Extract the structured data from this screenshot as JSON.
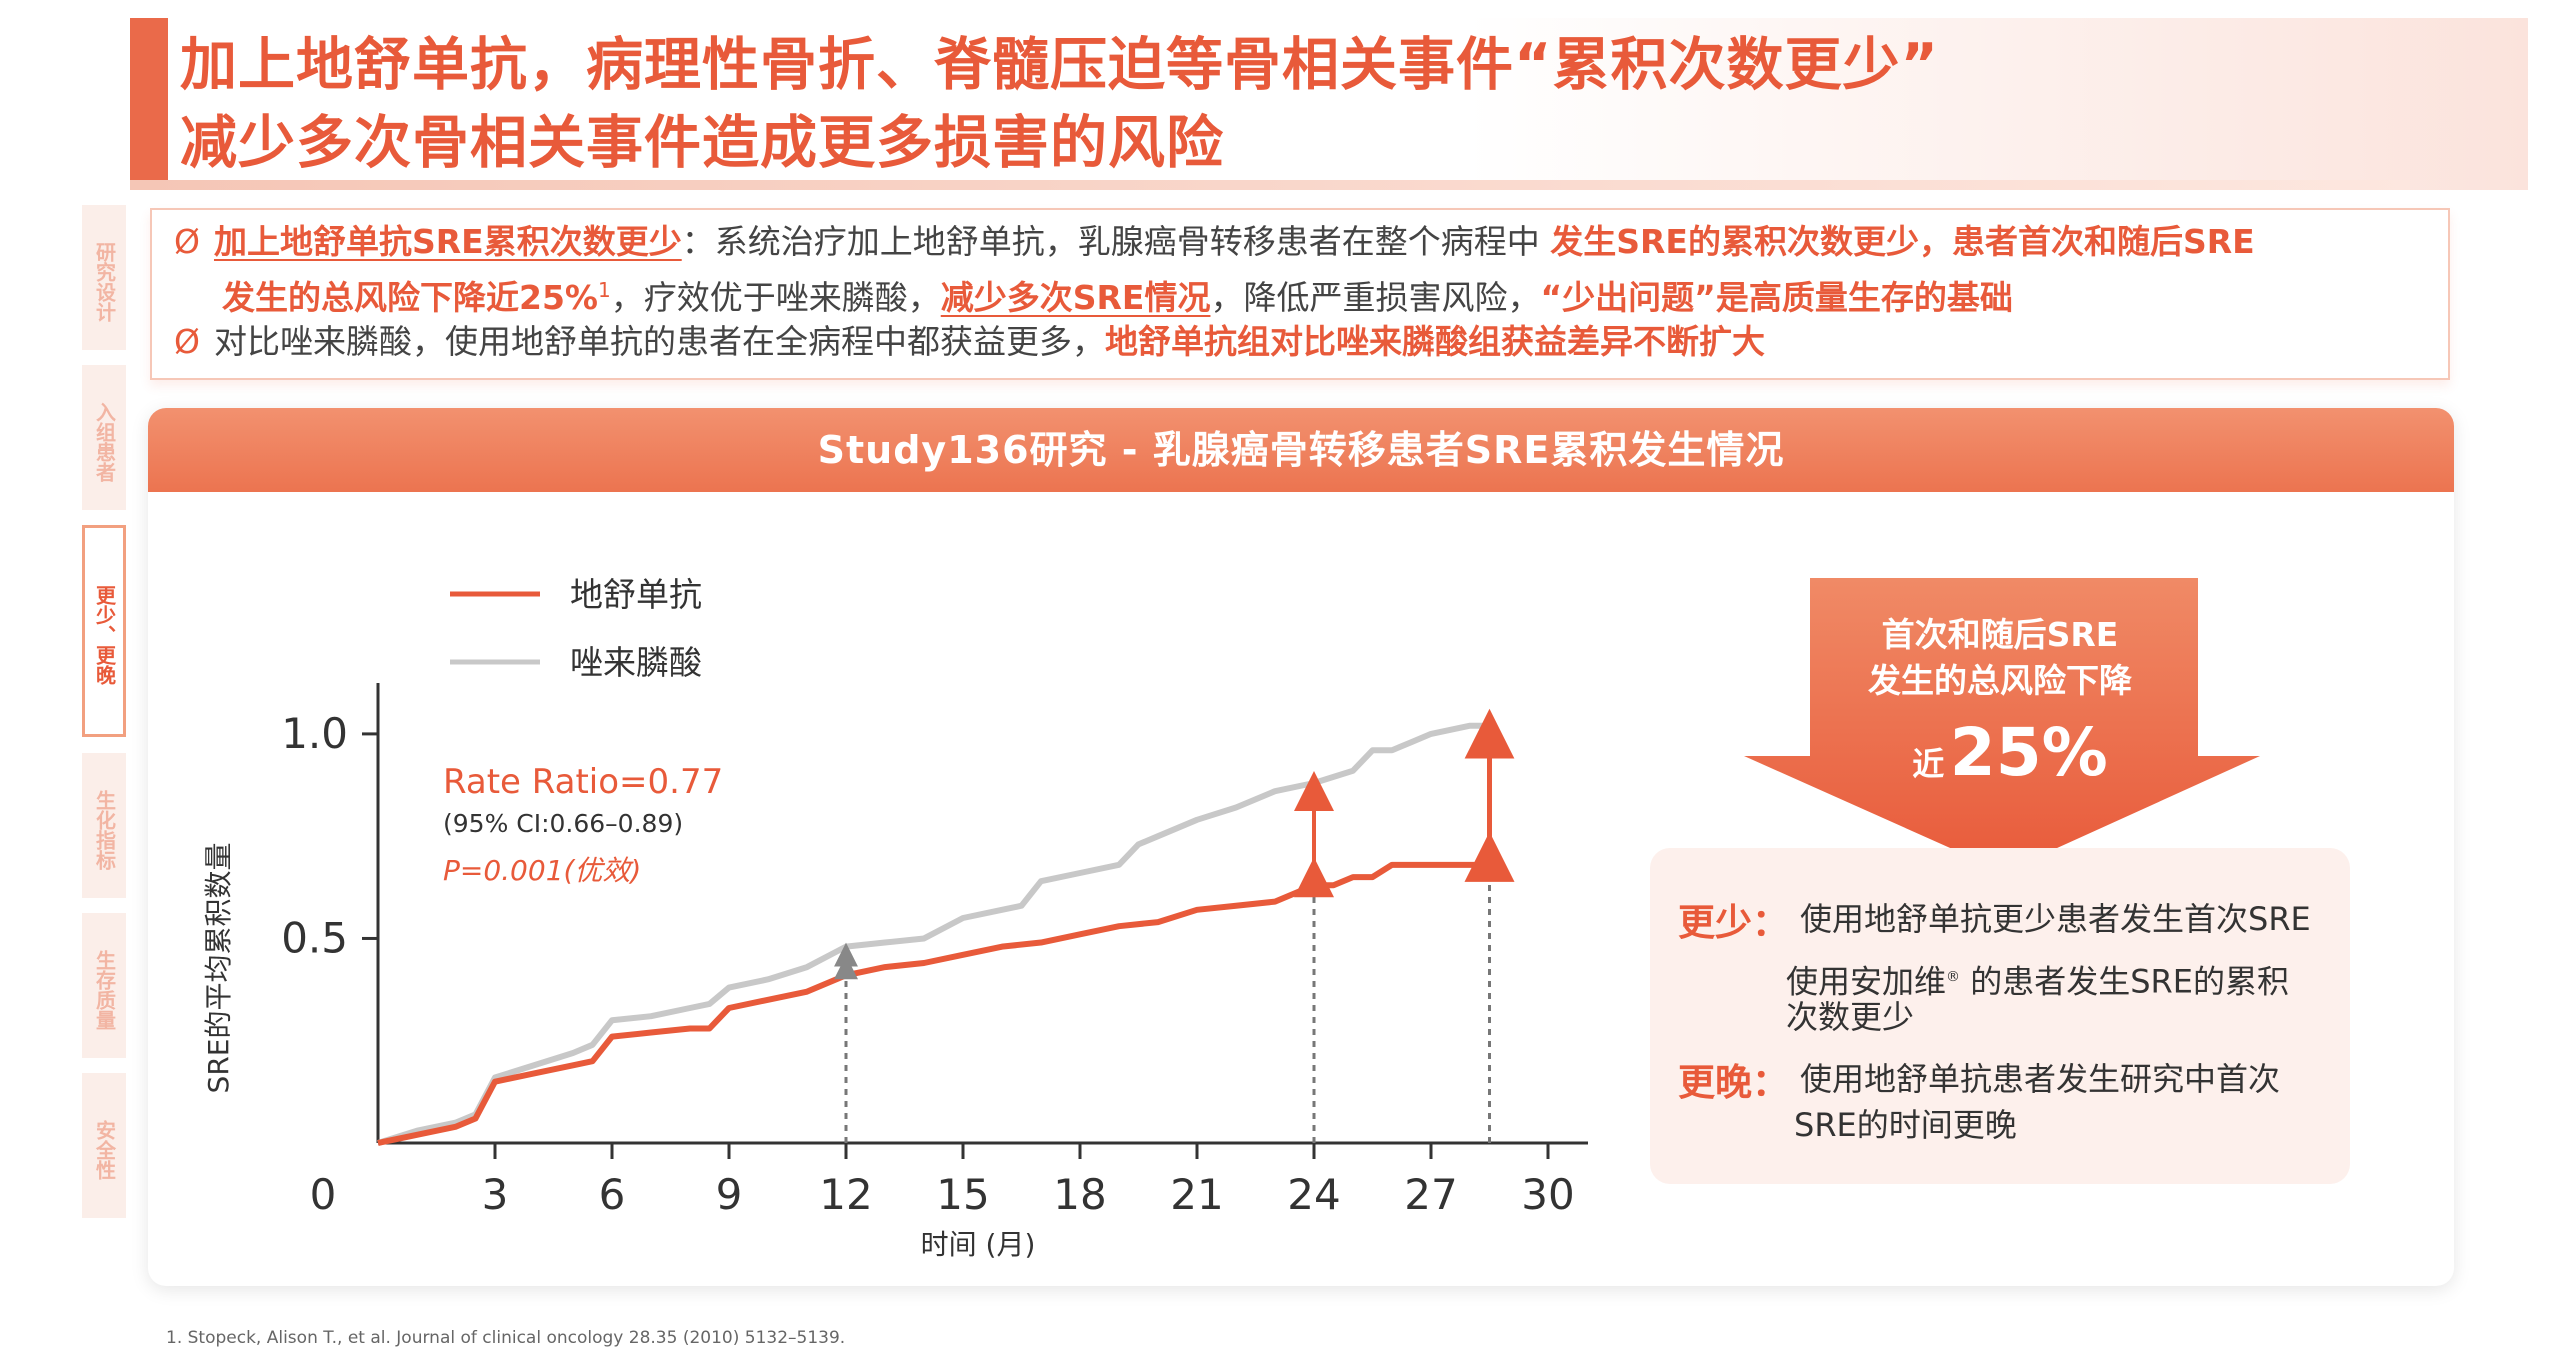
{
  "header": {
    "title_line1": "加上地舒单抗，病理性骨折、脊髓压迫等骨相关事件“累积次数更少”",
    "title_line2": "减少多次骨相关事件造成更多损害的风险"
  },
  "side_nav": {
    "items": [
      {
        "label": "研究设计"
      },
      {
        "label": "入组患者"
      },
      {
        "label": "更少、更晚"
      },
      {
        "label": "生化指标"
      },
      {
        "label": "生存质量"
      },
      {
        "label": "安全性"
      }
    ]
  },
  "bullets": {
    "mark": "Ø",
    "b1_hl1": "加上地舒单抗SRE累积次数更少",
    "b1_t1": "：系统治疗加上地舒单抗，乳腺癌骨转移患者在整个病程中 ",
    "b1_hl2": "发生SRE的累积次数更少，患者首次和随后SRE",
    "b1_hl3": "发生的总风险下降近25%",
    "b1_sup": "1",
    "b1_t2": "，疗效优于唑来膦酸，",
    "b1_hl4": "减少多次SRE情况",
    "b1_t3": "，降低严重损害风险，",
    "b1_hl5": "“少出问题”是高质量生存的基础",
    "b2_t1": "对比唑来膦酸，使用地舒单抗的患者在全病程中都获益更多，",
    "b2_hl1": "地舒单抗组对比唑来膦酸组获益差异不断扩大"
  },
  "panel": {
    "title": "Study136研究 - 乳腺癌骨转移患者SRE累积发生情况"
  },
  "chart_data": {
    "type": "line",
    "xlabel": "时间 (月)",
    "ylabel": "SRE的平均累积数量",
    "xticks": [
      0,
      3,
      6,
      9,
      12,
      15,
      18,
      21,
      24,
      27,
      30
    ],
    "yticks": [
      "0.5",
      "1.0"
    ],
    "xlim": [
      0,
      30
    ],
    "ylim": [
      0,
      1.1
    ],
    "series": [
      {
        "name": "地舒单抗",
        "color": "#e85a3a",
        "x": [
          0,
          1,
          2,
          2.5,
          3,
          4,
          5,
          5.5,
          6,
          7,
          8,
          8.5,
          9,
          10,
          11,
          12,
          13,
          14,
          15,
          16,
          17,
          18,
          19,
          20,
          21,
          22,
          23,
          24,
          24.5,
          25,
          25.5,
          26,
          27,
          28.5
        ],
        "y": [
          0,
          0.02,
          0.04,
          0.06,
          0.15,
          0.17,
          0.19,
          0.2,
          0.26,
          0.27,
          0.28,
          0.28,
          0.33,
          0.35,
          0.37,
          0.41,
          0.43,
          0.44,
          0.46,
          0.48,
          0.49,
          0.51,
          0.53,
          0.54,
          0.57,
          0.58,
          0.59,
          0.63,
          0.63,
          0.65,
          0.65,
          0.68,
          0.68,
          0.68
        ]
      },
      {
        "name": "唑来膦酸",
        "color": "#c8c8c8",
        "x": [
          0,
          1,
          2,
          2.5,
          3,
          4,
          5,
          5.5,
          6,
          7,
          8,
          8.5,
          9,
          10,
          11,
          12,
          13,
          14,
          15,
          16,
          16.5,
          17,
          18,
          19,
          19.5,
          20,
          21,
          22,
          23,
          24,
          25,
          25.5,
          26,
          26.5,
          27,
          28,
          28.5
        ],
        "y": [
          0,
          0.03,
          0.05,
          0.07,
          0.16,
          0.19,
          0.22,
          0.24,
          0.3,
          0.31,
          0.33,
          0.34,
          0.38,
          0.4,
          0.43,
          0.48,
          0.49,
          0.5,
          0.55,
          0.57,
          0.58,
          0.64,
          0.66,
          0.68,
          0.73,
          0.75,
          0.79,
          0.82,
          0.86,
          0.88,
          0.91,
          0.96,
          0.96,
          0.98,
          1.0,
          1.02,
          1.02
        ]
      }
    ],
    "markers_at": [
      12,
      24,
      28.5
    ],
    "legend": "top-left",
    "annotation_rr": "Rate Ratio=0.77",
    "annotation_ci": "(95% CI:0.66–0.89)",
    "annotation_p": "P=0.001(优效)"
  },
  "callout": {
    "arrow_line1": "首次和随后SRE",
    "arrow_line2": "发生的总风险下降",
    "arrow_prefix": "近",
    "arrow_value": "25%",
    "fewer_key": "更少：",
    "fewer_line1": "使用地舒单抗更少患者发生首次SRE",
    "fewer_line2a": "使用安加维",
    "fewer_reg": "®",
    "fewer_line2b": " 的患者发生SRE的累积",
    "fewer_line3": "次数更少",
    "later_key": "更晚：",
    "later_line1": "使用地舒单抗患者发生研究中首次",
    "later_line2": "SRE的时间更晚"
  },
  "colors": {
    "accent": "#e85a3a",
    "grey_series": "#c8c8c8",
    "panel_header": "#ec7450"
  },
  "footnote": "1.      Stopeck, Alison T., et al. Journal of clinical oncology 28.35 (2010) 5132–5139."
}
